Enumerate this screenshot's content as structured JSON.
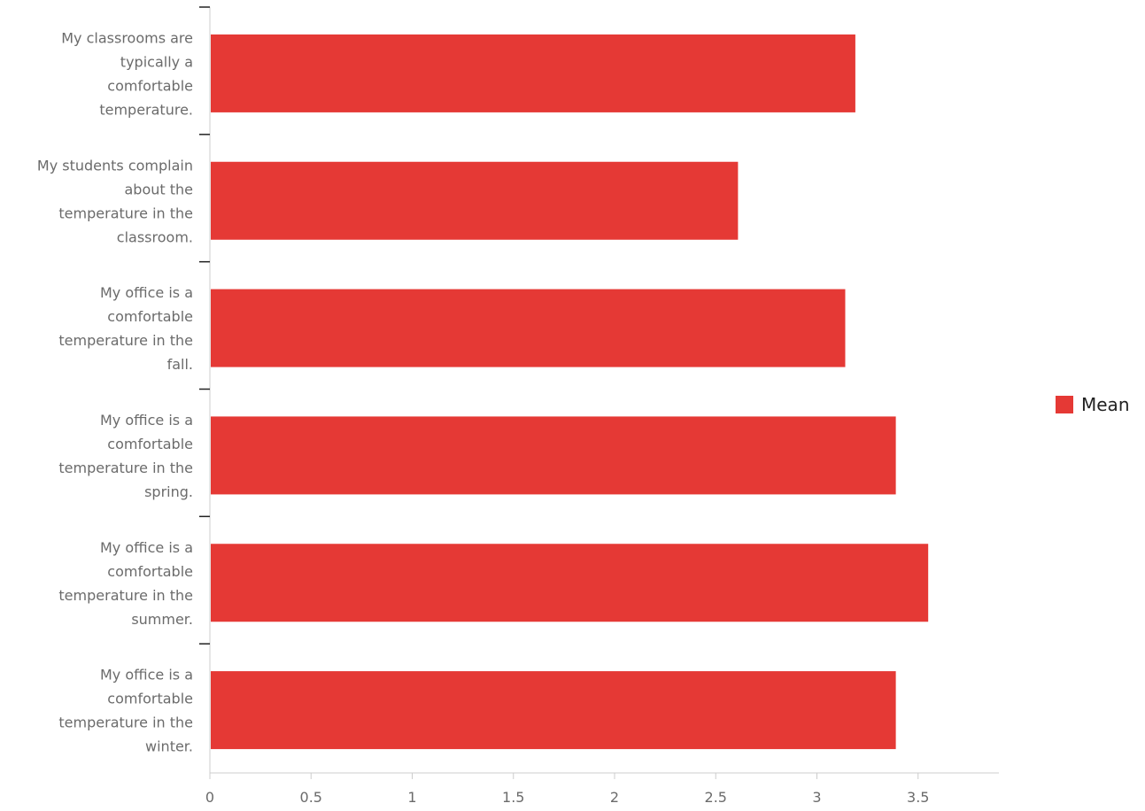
{
  "chart_data": {
    "type": "bar",
    "orientation": "horizontal",
    "title": "",
    "xlabel": "",
    "ylabel": "",
    "categories": [
      "My classrooms are typically a comfortable temperature.",
      "My students complain about the temperature in the classroom.",
      "My office is a comfortable temperature in the fall.",
      "My office is a comfortable temperature in the spring.",
      "My office is a comfortable temperature in the summer.",
      "My office is a comfortable temperature in the winter."
    ],
    "category_lines": [
      [
        "My classrooms are",
        "typically a",
        "comfortable",
        "temperature."
      ],
      [
        "My students complain",
        "about the",
        "temperature in the",
        "classroom."
      ],
      [
        "My office is a",
        "comfortable",
        "temperature in the",
        "fall."
      ],
      [
        "My office is a",
        "comfortable",
        "temperature in the",
        "spring."
      ],
      [
        "My office is a",
        "comfortable",
        "temperature in the",
        "summer."
      ],
      [
        "My office is a",
        "comfortable",
        "temperature in the",
        "winter."
      ]
    ],
    "series": [
      {
        "name": "Mean",
        "color": "#e53935",
        "values": [
          3.19,
          2.61,
          3.14,
          3.39,
          3.55,
          3.39
        ]
      }
    ],
    "xlim": [
      0,
      3.9
    ],
    "xticks": [
      0,
      0.5,
      1,
      1.5,
      2,
      2.5,
      3,
      3.5
    ],
    "xtick_labels": [
      "0",
      "0.5",
      "1",
      "1.5",
      "2",
      "2.5",
      "3",
      "3.5"
    ],
    "grid": false,
    "legend": {
      "position": "right",
      "entries": [
        "Mean"
      ]
    }
  }
}
